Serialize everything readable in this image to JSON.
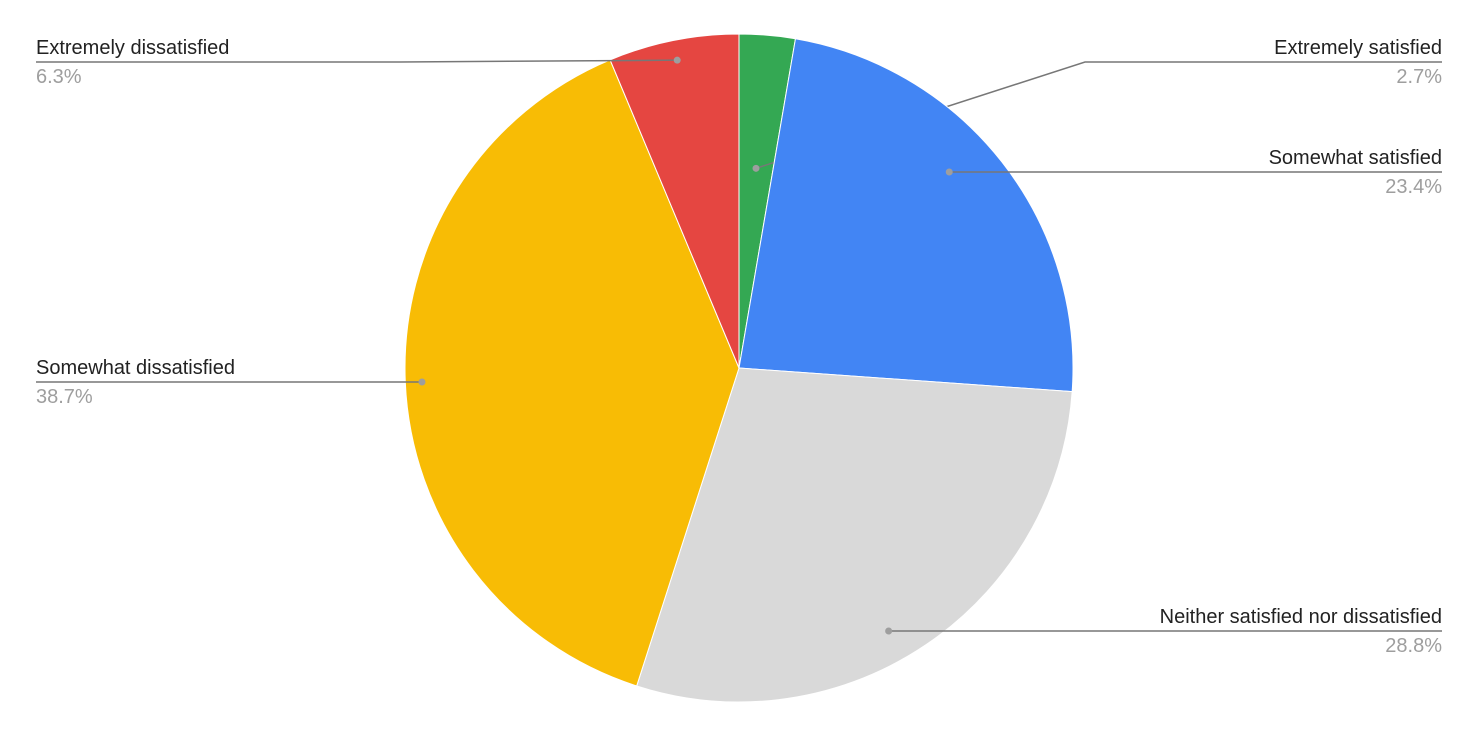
{
  "chart_data": {
    "type": "pie",
    "title": "",
    "start_angle_deg": 0,
    "direction": "clockwise",
    "legend": "labeled slices",
    "slices": [
      {
        "label": "Extremely satisfied",
        "value": 2.7,
        "pct_label": "2.7%",
        "color": "#34a853"
      },
      {
        "label": "Somewhat satisfied",
        "value": 23.4,
        "pct_label": "23.4%",
        "color": "#4285f4"
      },
      {
        "label": "Neither satisfied nor dissatisfied",
        "value": 28.8,
        "pct_label": "28.8%",
        "color": "#d9d9d9"
      },
      {
        "label": "Somewhat dissatisfied",
        "value": 38.7,
        "pct_label": "38.7%",
        "color": "#f8bc05"
      },
      {
        "label": "Extremely dissatisfied",
        "value": 6.3,
        "pct_label": "6.3%",
        "color": "#e54641"
      }
    ]
  }
}
